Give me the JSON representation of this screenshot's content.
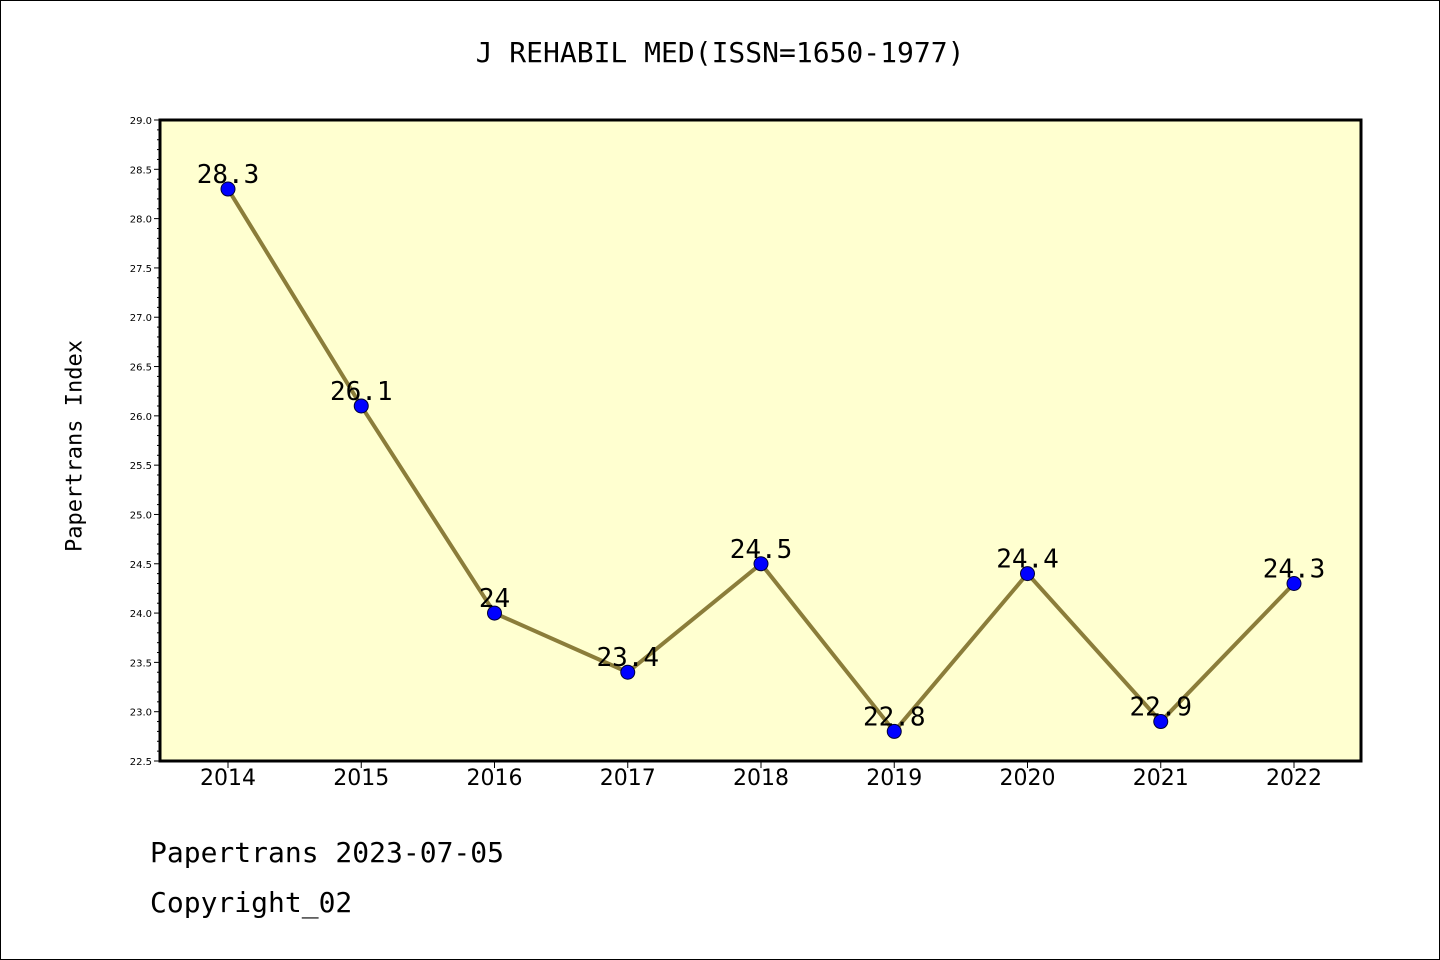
{
  "chart_data": {
    "type": "line",
    "title": "J REHABIL MED(ISSN=1650-1977)",
    "xlabel": "",
    "ylabel": "Papertrans Index",
    "categories": [
      "2014",
      "2015",
      "2016",
      "2017",
      "2018",
      "2019",
      "2020",
      "2021",
      "2022"
    ],
    "series": [
      {
        "values": [
          28.3,
          26.1,
          24,
          23.4,
          24.5,
          22.8,
          24.4,
          22.9,
          24.3
        ]
      }
    ],
    "data_labels": [
      "28.3",
      "26.1",
      "24",
      "23.4",
      "24.5",
      "22.8",
      "24.4",
      "22.9",
      "24.3"
    ],
    "ylim": [
      22.5,
      29.0
    ],
    "yticks": [
      "22.5",
      "23.0",
      "23.5",
      "24.0",
      "24.5",
      "25.0",
      "25.5",
      "26.0",
      "26.5",
      "27.0",
      "27.5",
      "28.0",
      "28.5",
      "29.0"
    ],
    "grid": false,
    "legend": "none",
    "colors": {
      "plot_background": "#ffffd0",
      "line": "#8b7d3a",
      "marker": "#0000ff"
    }
  },
  "footer": {
    "line1": "Papertrans 2023-07-05",
    "line2": "Copyright_02"
  }
}
